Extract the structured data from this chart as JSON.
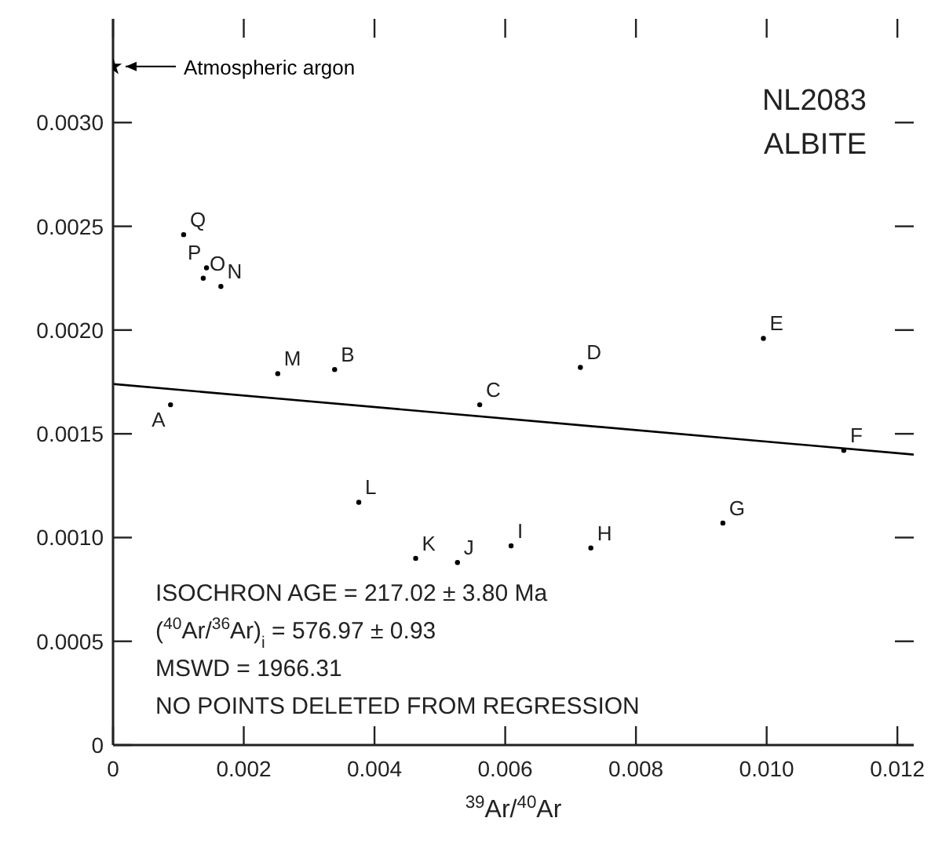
{
  "chart_data": {
    "type": "scatter",
    "xlabel": "$^{39}$Ar/$^{40}$Ar",
    "xlim": [
      0,
      0.01225
    ],
    "xticks": [
      0,
      0.002,
      0.004,
      0.006,
      0.008,
      {
        "value": 0.01,
        "label": "0.010"
      },
      0.012
    ],
    "ylim": [
      0,
      0.0035
    ],
    "yticks": [
      0,
      0.0005,
      {
        "value": 0.001,
        "label": "0.0010"
      },
      0.0015,
      {
        "value": 0.002,
        "label": "0.0020"
      },
      0.0025,
      {
        "value": 0.003,
        "label": "0.0030"
      }
    ],
    "legend": "top left",
    "series": [
      {
        "color": "#000000",
        "marker": "circle",
        "x": [
          0.00088,
          0.00339,
          0.00561,
          0.00715,
          0.00995,
          0.01118,
          0.00933,
          0.00731,
          0.00609,
          0.00527,
          0.00463,
          0.00376,
          0.00252,
          0.00165,
          0.00138,
          0.00143,
          0.00108
        ],
        "values": [
          0.00164,
          0.00181,
          0.00164,
          0.00182,
          0.00196,
          0.00142,
          0.00107,
          0.00095,
          0.00096,
          0.00088,
          0.0009,
          0.00117,
          0.00179,
          0.00221,
          0.00225,
          0.0023,
          0.00246
        ]
      },
      {
        "type": "line",
        "color": "#000000",
        "marker": "none",
        "line_style": "solid",
        "x": [
          0,
          0.01225
        ],
        "values": [
          0.00174,
          0.0014
        ]
      },
      {
        "name": "Atmospheric argon",
        "color": "#000000",
        "marker": "star",
        "x": [
          0
        ],
        "values": [
          0.00327
        ]
      }
    ],
    "annotations": [
      "NL2083",
      "ALBITE",
      "ISOCHRON AGE = 217.02 ± 3.80 Ma",
      "($^{40}$Ar/$^{36}$Ar)$_{i}$ = 576.97 ± 0.93",
      "MSWD = 1966.31",
      "NO POINTS DELETED FROM REGRESSION",
      {
        "text": "A",
        "x": 0.00088,
        "y": 0.00164
      },
      {
        "text": "B",
        "x": 0.00339,
        "y": 0.00181
      },
      {
        "text": "C",
        "x": 0.00561,
        "y": 0.00164
      },
      {
        "text": "D",
        "x": 0.00715,
        "y": 0.00182
      },
      {
        "text": "E",
        "x": 0.00995,
        "y": 0.00196
      },
      {
        "text": "F",
        "x": 0.01118,
        "y": 0.00142
      },
      {
        "text": "G",
        "x": 0.00933,
        "y": 0.00107
      },
      {
        "text": "H",
        "x": 0.00731,
        "y": 0.00095
      },
      {
        "text": "I",
        "x": 0.00609,
        "y": 0.00096
      },
      {
        "text": "J",
        "x": 0.00527,
        "y": 0.00088
      },
      {
        "text": "K",
        "x": 0.00463,
        "y": 0.0009
      },
      {
        "text": "L",
        "x": 0.00376,
        "y": 0.00117
      },
      {
        "text": "M",
        "x": 0.00252,
        "y": 0.00179
      },
      {
        "text": "N",
        "x": 0.00165,
        "y": 0.00221
      },
      {
        "text": "O",
        "x": 0.00138,
        "y": 0.00225
      },
      {
        "text": "P",
        "x": 0.00143,
        "y": 0.0023
      },
      {
        "text": "Q",
        "x": 0.00108,
        "y": 0.00246
      }
    ]
  }
}
